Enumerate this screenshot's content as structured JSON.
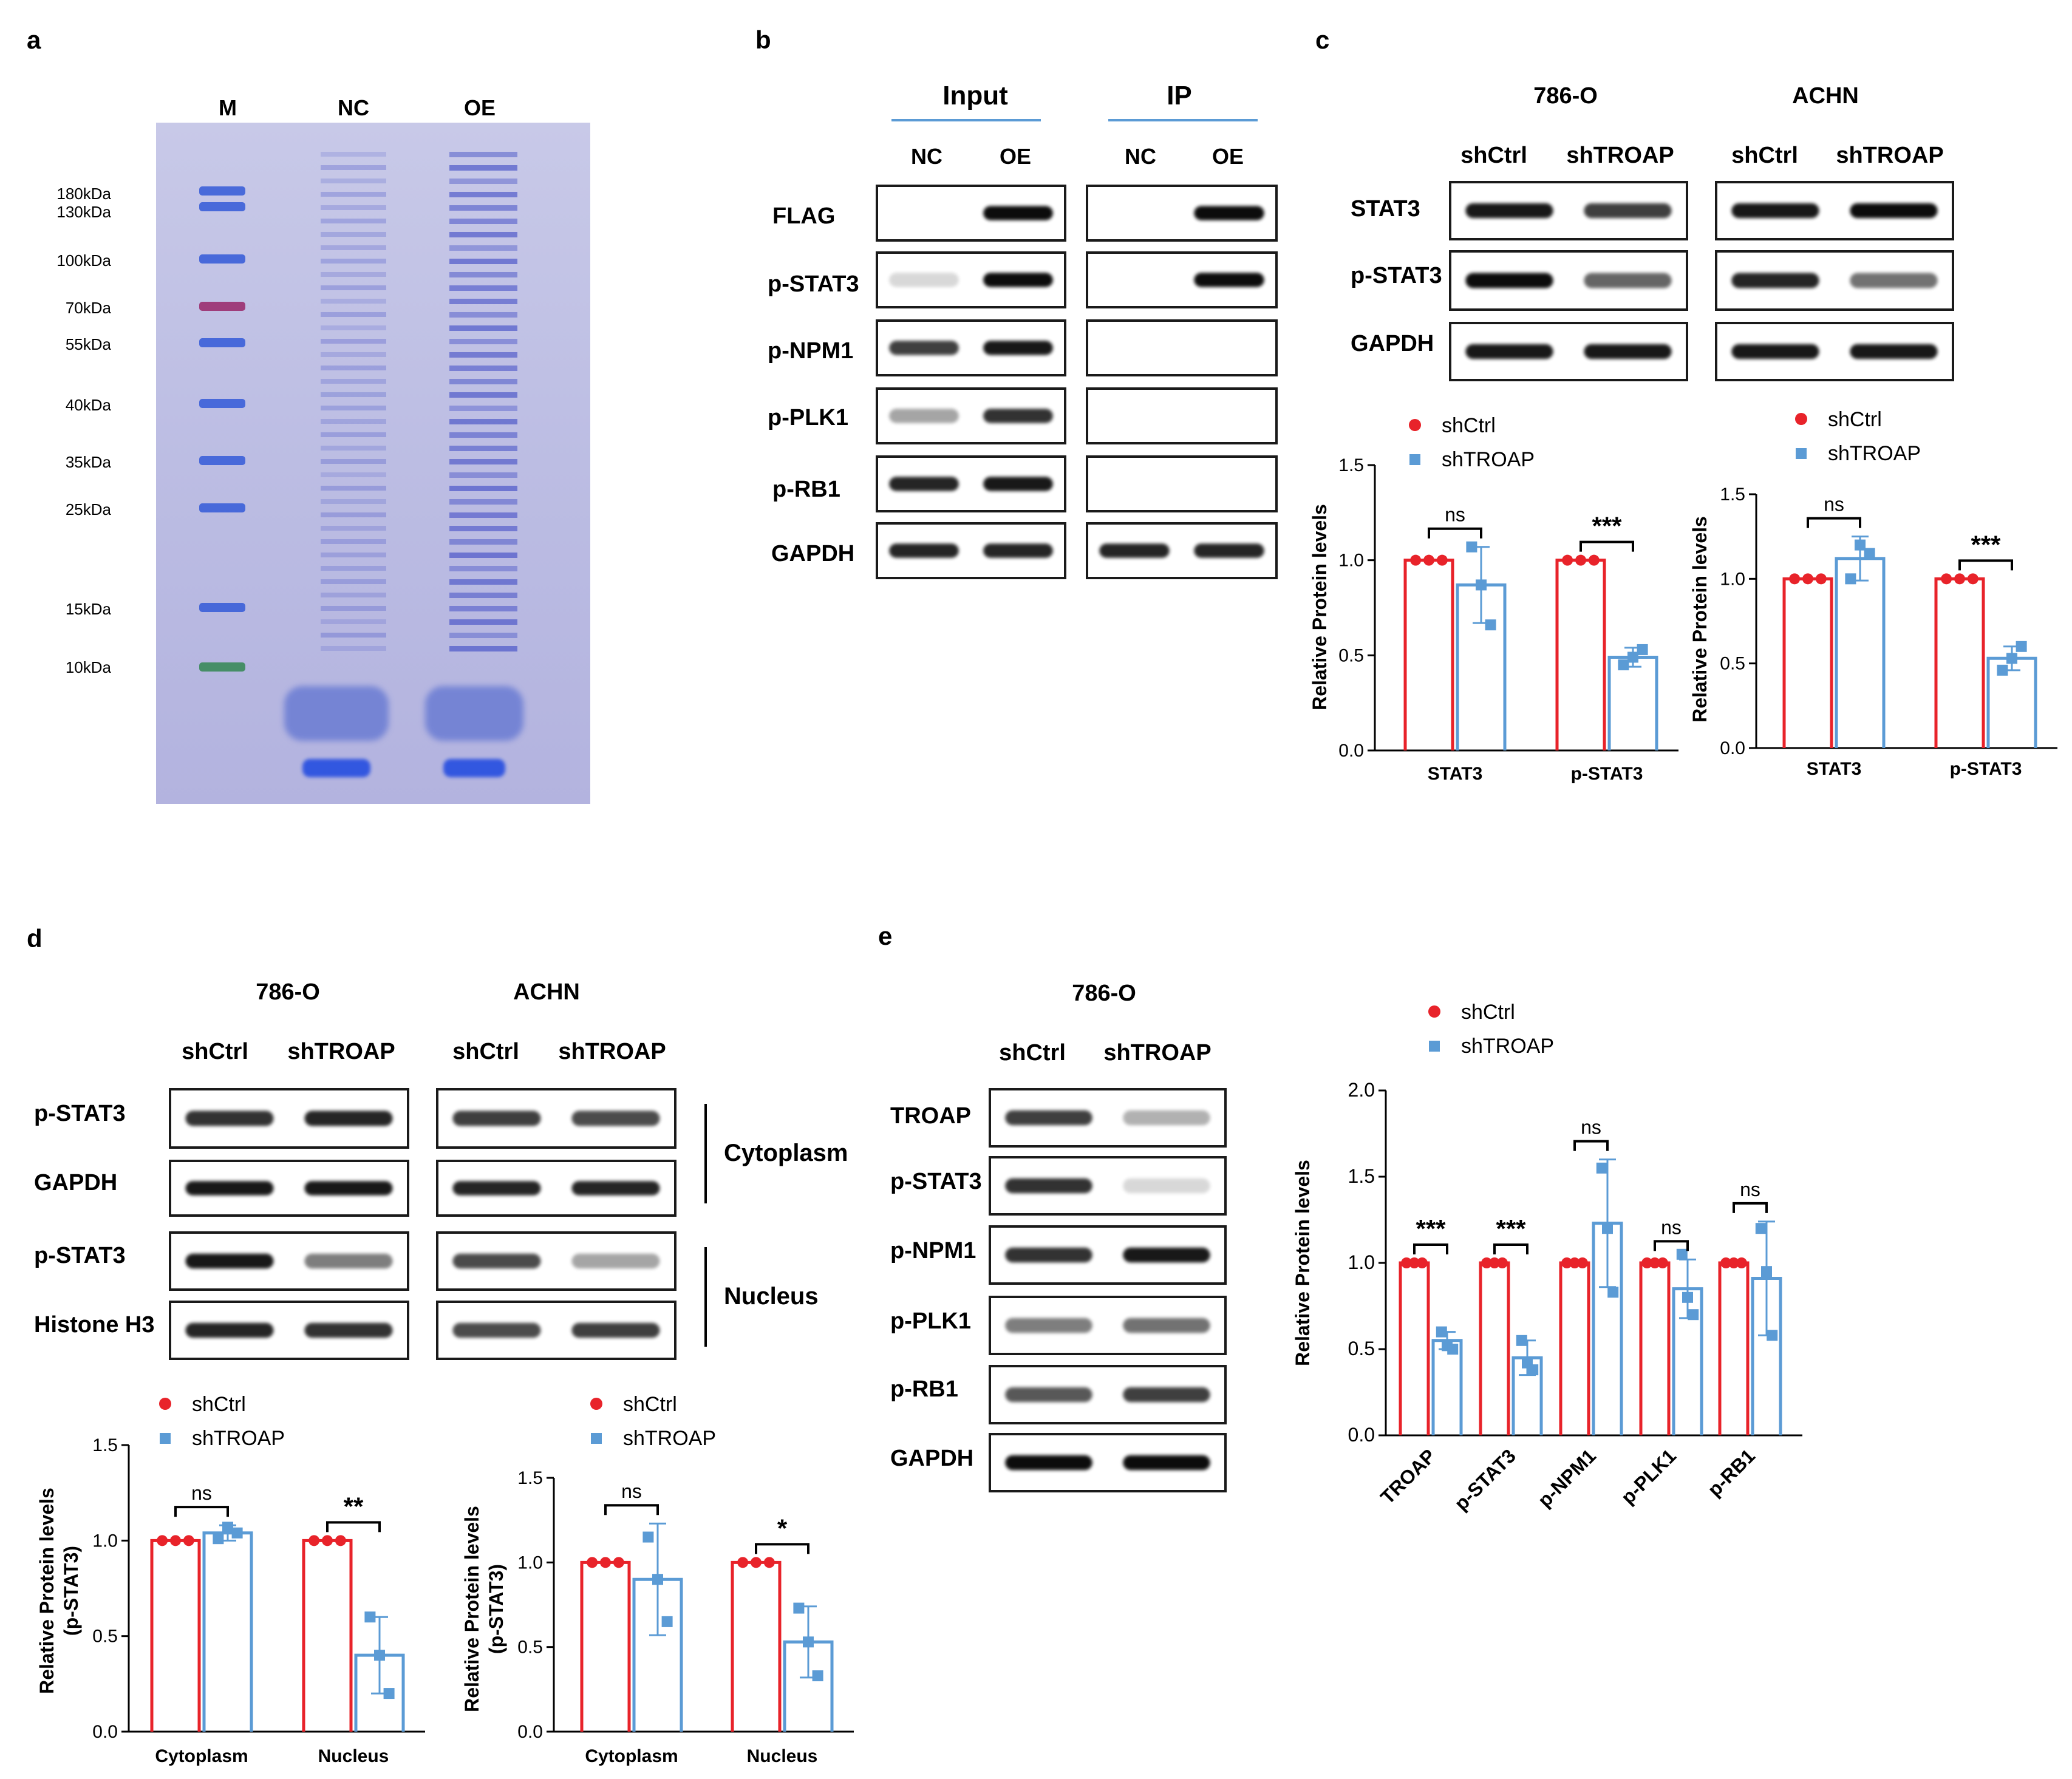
{
  "panels": {
    "a": {
      "letter": "a",
      "lanes": [
        "M",
        "NC",
        "OE"
      ],
      "markers": [
        "180kDa",
        "130kDa",
        "100kDa",
        "70kDa",
        "55kDa",
        "40kDa",
        "35kDa",
        "25kDa",
        "15kDa",
        "10kDa"
      ]
    },
    "b": {
      "letter": "b",
      "groups": [
        "Input",
        "IP"
      ],
      "lanes": [
        "NC",
        "OE",
        "NC",
        "OE"
      ],
      "rows": [
        "FLAG",
        "p-STAT3",
        "p-NPM1",
        "p-PLK1",
        "p-RB1",
        "GAPDH"
      ]
    },
    "c": {
      "letter": "c",
      "cells": [
        "786-O",
        "ACHN"
      ],
      "lanes": [
        "shCtrl",
        "shTROAP",
        "shCtrl",
        "shTROAP"
      ],
      "rows": [
        "STAT3",
        "p-STAT3",
        "GAPDH"
      ]
    },
    "d": {
      "letter": "d",
      "cells": [
        "786-O",
        "ACHN"
      ],
      "lanes": [
        "shCtrl",
        "shTROAP",
        "shCtrl",
        "shTROAP"
      ],
      "rows": [
        "p-STAT3",
        "GAPDH",
        "p-STAT3",
        "Histone H3"
      ],
      "fractions": [
        "Cytoplasm",
        "Nucleus"
      ]
    },
    "e": {
      "letter": "e",
      "cell": "786-O",
      "lanes": [
        "shCtrl",
        "shTROAP"
      ],
      "rows": [
        "TROAP",
        "p-STAT3",
        "p-NPM1",
        "p-PLK1",
        "p-RB1",
        "GAPDH"
      ]
    }
  },
  "legend": {
    "ctrl": "shCtrl",
    "kd": "shTROAP"
  },
  "colors": {
    "ctrl": "#e8232a",
    "kd": "#5b9bd5",
    "axis": "#000000"
  },
  "chart_data": [
    {
      "id": "c1",
      "type": "bar",
      "categories": [
        "STAT3",
        "p-STAT3"
      ],
      "series": [
        {
          "name": "shCtrl",
          "values": [
            1.0,
            1.0
          ],
          "points": [
            [
              1.0,
              1.0,
              1.0
            ],
            [
              1.0,
              1.0,
              1.0
            ]
          ]
        },
        {
          "name": "shTROAP",
          "values": [
            0.87,
            0.49
          ],
          "points": [
            [
              1.07,
              0.87,
              0.66
            ],
            [
              0.45,
              0.49,
              0.53
            ]
          ],
          "errors": [
            0.2,
            0.05
          ]
        }
      ],
      "ylabel": "Relative Protein levels",
      "ylim": [
        0,
        1.5
      ],
      "yticks": [
        "0.0",
        "0.5",
        "1.0",
        "1.5"
      ],
      "significance": [
        "ns",
        "***"
      ]
    },
    {
      "id": "c2",
      "type": "bar",
      "categories": [
        "STAT3",
        "p-STAT3"
      ],
      "series": [
        {
          "name": "shCtrl",
          "values": [
            1.0,
            1.0
          ],
          "points": [
            [
              1.0,
              1.0,
              1.0
            ],
            [
              1.0,
              1.0,
              1.0
            ]
          ]
        },
        {
          "name": "shTROAP",
          "values": [
            1.12,
            0.53
          ],
          "points": [
            [
              1.0,
              1.2,
              1.15
            ],
            [
              0.46,
              0.53,
              0.6
            ]
          ],
          "errors": [
            0.13,
            0.07
          ]
        }
      ],
      "ylabel": "Relative Protein levels",
      "ylim": [
        0,
        1.5
      ],
      "yticks": [
        "0.0",
        "0.5",
        "1.0",
        "1.5"
      ],
      "significance": [
        "ns",
        "***"
      ]
    },
    {
      "id": "d1",
      "type": "bar",
      "categories": [
        "Cytoplasm",
        "Nucleus"
      ],
      "series": [
        {
          "name": "shCtrl",
          "values": [
            1.0,
            1.0
          ],
          "points": [
            [
              1.0,
              1.0,
              1.0
            ],
            [
              1.0,
              1.0,
              1.0
            ]
          ]
        },
        {
          "name": "shTROAP",
          "values": [
            1.04,
            0.4
          ],
          "points": [
            [
              1.01,
              1.07,
              1.04
            ],
            [
              0.6,
              0.4,
              0.2
            ]
          ],
          "errors": [
            0.04,
            0.2
          ]
        }
      ],
      "ylabel": "Relative Protein levels",
      "ylabel2": "(p-STAT3)",
      "ylim": [
        0,
        1.5
      ],
      "yticks": [
        "0.0",
        "0.5",
        "1.0",
        "1.5"
      ],
      "significance": [
        "ns",
        "**"
      ]
    },
    {
      "id": "d2",
      "type": "bar",
      "categories": [
        "Cytoplasm",
        "Nucleus"
      ],
      "series": [
        {
          "name": "shCtrl",
          "values": [
            1.0,
            1.0
          ],
          "points": [
            [
              1.0,
              1.0,
              1.0
            ],
            [
              1.0,
              1.0,
              1.0
            ]
          ]
        },
        {
          "name": "shTROAP",
          "values": [
            0.9,
            0.53
          ],
          "points": [
            [
              1.15,
              0.9,
              0.65
            ],
            [
              0.73,
              0.53,
              0.33
            ]
          ],
          "errors": [
            0.33,
            0.21
          ]
        }
      ],
      "ylabel": "Relative Protein levels",
      "ylabel2": "(p-STAT3)",
      "ylim": [
        0,
        1.5
      ],
      "yticks": [
        "0.0",
        "0.5",
        "1.0",
        "1.5"
      ],
      "significance": [
        "ns",
        "*"
      ]
    },
    {
      "id": "e1",
      "type": "bar",
      "categories": [
        "TROAP",
        "p-STAT3",
        "p-NPM1",
        "p-PLK1",
        "p-RB1"
      ],
      "series": [
        {
          "name": "shCtrl",
          "values": [
            1.0,
            1.0,
            1.0,
            1.0,
            1.0
          ],
          "points": [
            [
              1,
              1,
              1
            ],
            [
              1,
              1,
              1
            ],
            [
              1,
              1,
              1
            ],
            [
              1,
              1,
              1
            ],
            [
              1,
              1,
              1
            ]
          ]
        },
        {
          "name": "shTROAP",
          "values": [
            0.55,
            0.45,
            1.23,
            0.85,
            0.91
          ],
          "points": [
            [
              0.6,
              0.52,
              0.5
            ],
            [
              0.55,
              0.42,
              0.38
            ],
            [
              1.55,
              1.2,
              0.83
            ],
            [
              1.05,
              0.8,
              0.7
            ],
            [
              1.2,
              0.95,
              0.58
            ]
          ],
          "errors": [
            0.05,
            0.1,
            0.37,
            0.17,
            0.33
          ]
        }
      ],
      "ylabel": "Relative Protein levels",
      "ylim": [
        0,
        2.0
      ],
      "yticks": [
        "0.0",
        "0.5",
        "1.0",
        "1.5",
        "2.0"
      ],
      "significance": [
        "***",
        "***",
        "ns",
        "ns",
        "ns"
      ]
    }
  ]
}
